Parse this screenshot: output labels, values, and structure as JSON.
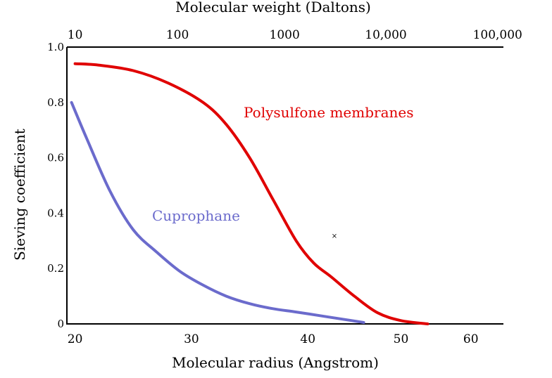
{
  "chart_data": {
    "type": "line",
    "xlabel": "Molecular radius (Angstrom)",
    "ylabel": "Sieving coefficient",
    "top_axis_label": "Molecular weight (Daltons)",
    "x_ticks": [
      "20",
      "30",
      "40",
      "50",
      "60"
    ],
    "x_tick_values": [
      20,
      30,
      40,
      48,
      54
    ],
    "top_ticks": [
      "10",
      "100",
      "1000",
      "10,000",
      "100,000"
    ],
    "top_tick_values": [
      20,
      28.8,
      38,
      46.7,
      56.3
    ],
    "y_ticks": [
      "0",
      "0.2",
      "0.4",
      "0.6",
      "0.8",
      "1.0"
    ],
    "y_tick_values": [
      0,
      0.2,
      0.4,
      0.6,
      0.8,
      1.0
    ],
    "xlim": [
      19.3,
      56.8
    ],
    "ylim": [
      0,
      1.0
    ],
    "grid": false,
    "series": [
      {
        "name": "Polysulfone membranes",
        "color": "#e00000",
        "x": [
          20,
          22,
          25,
          28,
          31,
          33,
          35,
          37,
          39,
          40.5,
          42,
          44,
          46,
          48,
          50.3
        ],
        "y": [
          0.94,
          0.935,
          0.915,
          0.87,
          0.8,
          0.72,
          0.6,
          0.45,
          0.3,
          0.22,
          0.17,
          0.1,
          0.04,
          0.012,
          0.0
        ]
      },
      {
        "name": "Cuprophane",
        "color": "#6b6bcc",
        "x": [
          19.7,
          21,
          23,
          25,
          27,
          29,
          31,
          33,
          35,
          37,
          39,
          41,
          43,
          44.8
        ],
        "y": [
          0.8,
          0.67,
          0.48,
          0.34,
          0.26,
          0.19,
          0.14,
          0.1,
          0.073,
          0.055,
          0.043,
          0.03,
          0.017,
          0.005
        ]
      }
    ]
  }
}
